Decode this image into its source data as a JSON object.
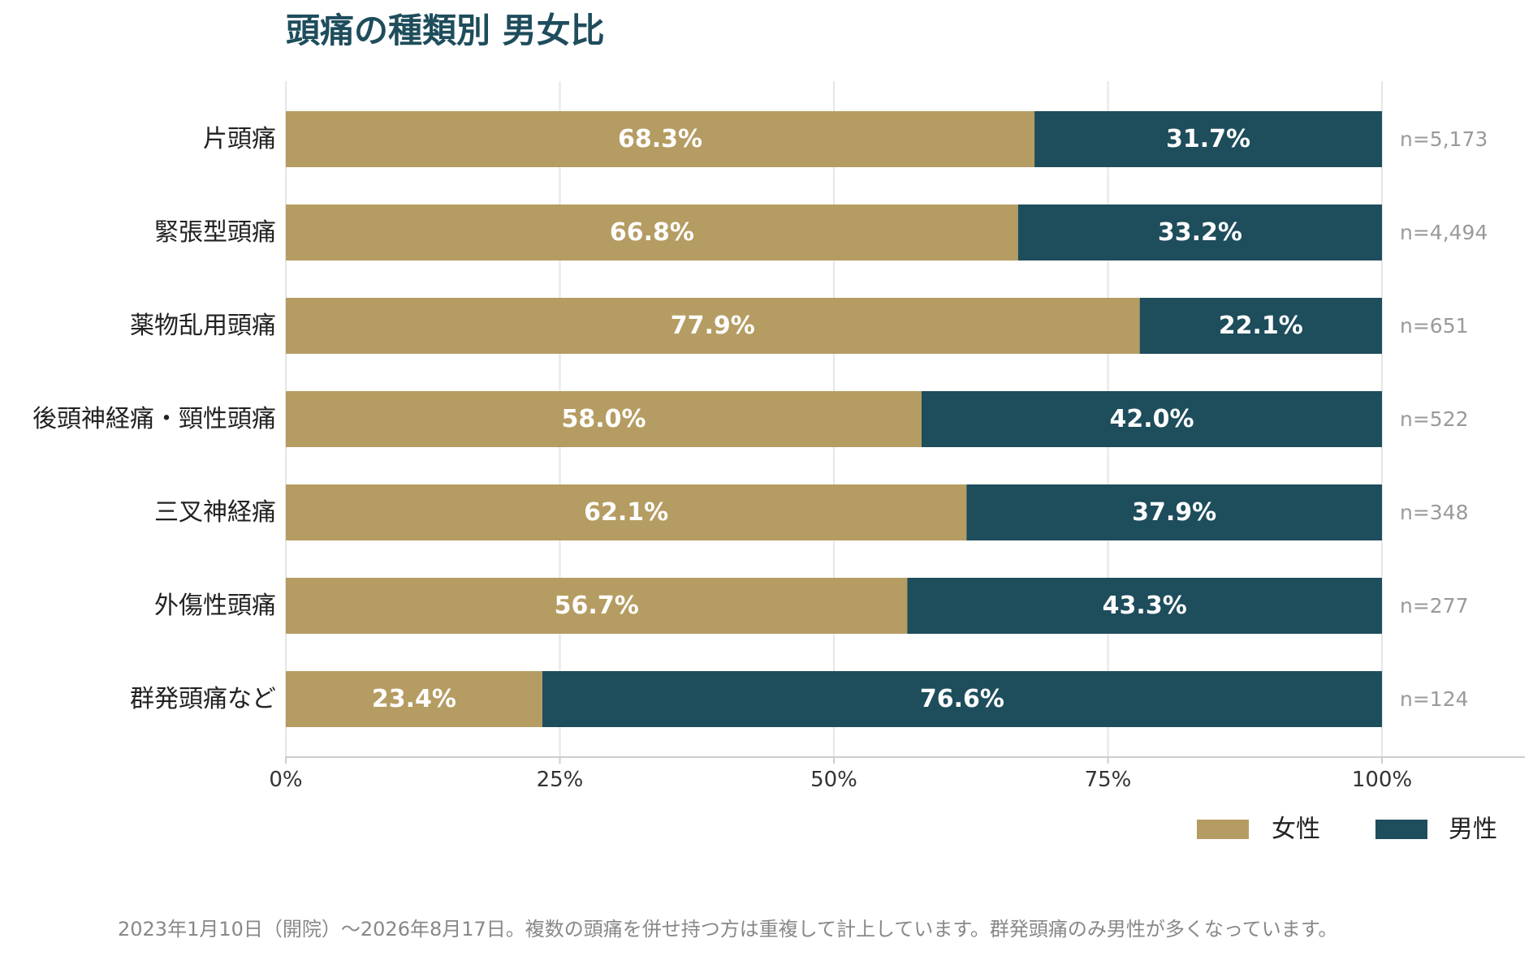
{
  "chart_data": {
    "type": "bar",
    "orientation": "horizontal",
    "stacked": true,
    "title": "頭痛の種類別 男女比",
    "categories": [
      "片頭痛",
      "緊張型頭痛",
      "薬物乱用頭痛",
      "後頭神経痛・頸性頭痛",
      "三叉神経痛",
      "外傷性頭痛",
      "群発頭痛など"
    ],
    "n_labels": [
      "n=5,173",
      "n=4,494",
      "n=651",
      "n=522",
      "n=348",
      "n=277",
      "n=124"
    ],
    "series": [
      {
        "name": "女性",
        "color": "#b59c62",
        "values": [
          68.3,
          66.8,
          77.9,
          58.0,
          62.1,
          56.7,
          23.4
        ],
        "labels": [
          "68.3%",
          "66.8%",
          "77.9%",
          "58.0%",
          "62.1%",
          "56.7%",
          "23.4%"
        ]
      },
      {
        "name": "男性",
        "color": "#1e4d5c",
        "values": [
          31.7,
          33.2,
          22.1,
          42.0,
          37.9,
          43.3,
          76.6
        ],
        "labels": [
          "31.7%",
          "33.2%",
          "22.1%",
          "42.0%",
          "37.9%",
          "43.3%",
          "76.6%"
        ]
      }
    ],
    "xlim": [
      0,
      100
    ],
    "x_ticks": [
      0,
      25,
      50,
      75,
      100
    ],
    "x_tick_labels": [
      "0%",
      "25%",
      "50%",
      "75%",
      "100%"
    ],
    "grid": true,
    "legend": "bottom-right",
    "footnote": "2023年1月10日（開院）〜2026年8月17日。複数の頭痛を併せ持つ方は重複して計上しています。群発頭痛のみ男性が多くなっています。"
  }
}
